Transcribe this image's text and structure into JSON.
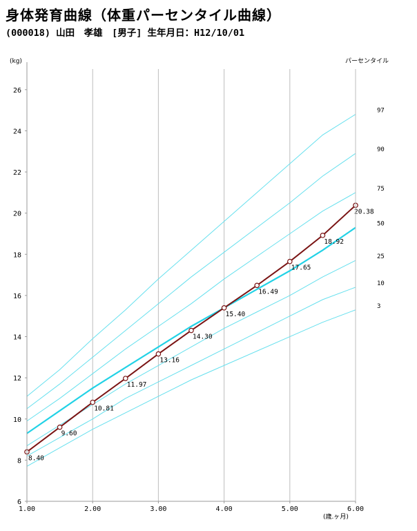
{
  "header": {
    "title": "身体発育曲線（体重パーセンタイル曲線）",
    "subtitle": "(000018) 山田　孝雄　[男子] 生年月日：H12/10/01"
  },
  "chart_data": {
    "type": "line",
    "title": "",
    "xlabel": "(歳.ヶ月)",
    "ylabel": "(kg)",
    "xlim": [
      1.0,
      6.0
    ],
    "ylim": [
      6,
      27
    ],
    "grid": true,
    "x_ticks": [
      1.0,
      2.0,
      3.0,
      4.0,
      5.0,
      6.0
    ],
    "x_tick_labels": [
      "1.00",
      "2.00",
      "3.00",
      "4.00",
      "5.00",
      "6.00"
    ],
    "y_ticks": [
      6,
      8,
      10,
      12,
      14,
      16,
      18,
      20,
      22,
      24,
      26
    ],
    "y_tick_labels": [
      "6",
      "8",
      "10",
      "12",
      "14",
      "16",
      "18",
      "20",
      "22",
      "24",
      "26"
    ],
    "percentile_header": "パーセンタイル",
    "percentile_color": "#66e0ee",
    "percentile_median_color": "#22d2e6",
    "series_color": "#7a1414",
    "marker_fill": "#ffffff",
    "percentiles": [
      {
        "label": "97",
        "x": [
          1.0,
          1.5,
          2.0,
          2.5,
          3.0,
          3.5,
          4.0,
          4.5,
          5.0,
          5.5,
          6.0
        ],
        "y": [
          11.1,
          12.4,
          13.9,
          15.3,
          16.8,
          18.2,
          19.6,
          21.0,
          22.4,
          23.8,
          24.8
        ]
      },
      {
        "label": "90",
        "x": [
          1.0,
          1.5,
          2.0,
          2.5,
          3.0,
          3.5,
          4.0,
          4.5,
          5.0,
          5.5,
          6.0
        ],
        "y": [
          10.5,
          11.7,
          13.0,
          14.3,
          15.6,
          16.9,
          18.1,
          19.3,
          20.5,
          21.8,
          22.9
        ]
      },
      {
        "label": "75",
        "x": [
          1.0,
          1.5,
          2.0,
          2.5,
          3.0,
          3.5,
          4.0,
          4.5,
          5.0,
          5.5,
          6.0
        ],
        "y": [
          9.9,
          11.0,
          12.2,
          13.4,
          14.5,
          15.6,
          16.8,
          17.9,
          19.0,
          20.1,
          21.0
        ]
      },
      {
        "label": "50",
        "x": [
          1.0,
          1.5,
          2.0,
          2.5,
          3.0,
          3.5,
          4.0,
          4.5,
          5.0,
          5.5,
          6.0
        ],
        "y": [
          9.3,
          10.4,
          11.5,
          12.5,
          13.5,
          14.5,
          15.4,
          16.3,
          17.2,
          18.2,
          19.3
        ],
        "median": true
      },
      {
        "label": "25",
        "x": [
          1.0,
          1.5,
          2.0,
          2.5,
          3.0,
          3.5,
          4.0,
          4.5,
          5.0,
          5.5,
          6.0
        ],
        "y": [
          8.7,
          9.7,
          10.7,
          11.7,
          12.6,
          13.5,
          14.4,
          15.2,
          16.0,
          16.9,
          17.7
        ]
      },
      {
        "label": "10",
        "x": [
          1.0,
          1.5,
          2.0,
          2.5,
          3.0,
          3.5,
          4.0,
          4.5,
          5.0,
          5.5,
          6.0
        ],
        "y": [
          8.2,
          9.1,
          10.0,
          11.0,
          11.8,
          12.6,
          13.4,
          14.2,
          15.0,
          15.8,
          16.4
        ]
      },
      {
        "label": "3",
        "x": [
          1.0,
          1.5,
          2.0,
          2.5,
          3.0,
          3.5,
          4.0,
          4.5,
          5.0,
          5.5,
          6.0
        ],
        "y": [
          7.7,
          8.6,
          9.5,
          10.3,
          11.1,
          11.9,
          12.6,
          13.3,
          14.0,
          14.7,
          15.3
        ]
      }
    ],
    "series": [
      {
        "name": "",
        "x": [
          1.0,
          1.5,
          2.0,
          2.5,
          3.0,
          3.5,
          4.0,
          4.5,
          5.0,
          5.5,
          6.0
        ],
        "y": [
          8.4,
          9.6,
          10.81,
          11.97,
          13.16,
          14.3,
          15.4,
          16.49,
          17.65,
          18.92,
          20.38
        ],
        "labels": [
          "8.40",
          "9.60",
          "10.81",
          "11.97",
          "13.16",
          "14.30",
          "15.40",
          "16.49",
          "17.65",
          "18.92",
          "20.38"
        ]
      }
    ]
  }
}
